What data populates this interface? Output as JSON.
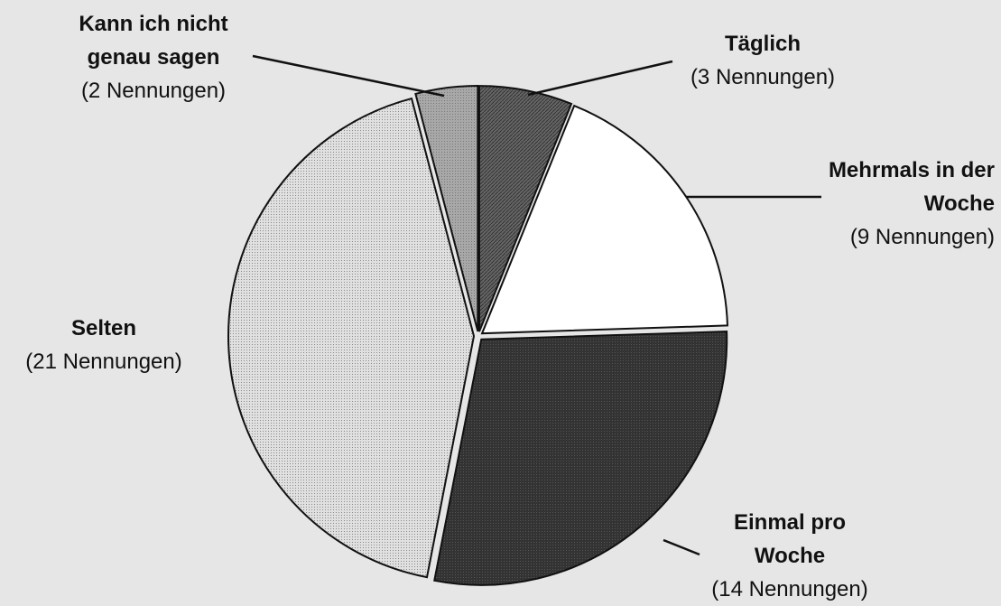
{
  "chart_data": {
    "type": "pie",
    "categories": [
      "Täglich",
      "Mehrmals in der Woche",
      "Einmal pro Woche",
      "Selten",
      "Kann ich nicht genau sagen"
    ],
    "values": [
      3,
      9,
      14,
      21,
      2
    ],
    "value_labels": [
      "(3 Nennungen)",
      "(9 Nennungen)",
      "(14 Nennungen)",
      "(21 Nennungen)",
      "(2 Nennungen)"
    ],
    "colors": [
      "#5a5a5a",
      "#ffffff",
      "#2e2e2e",
      "#d4d4d4",
      "#9a9a9a"
    ]
  }
}
